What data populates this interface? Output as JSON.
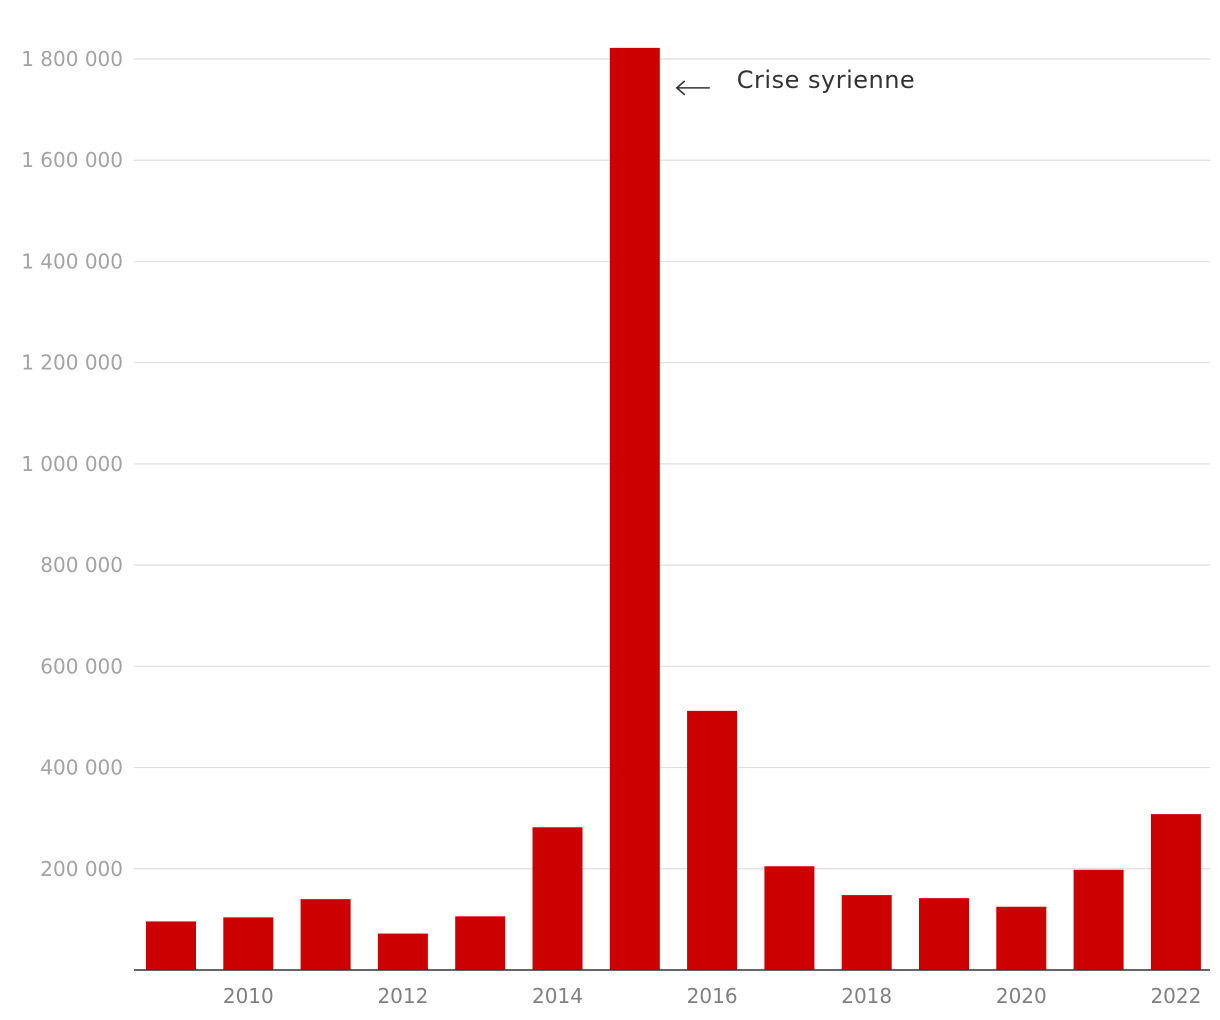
{
  "chart_data": {
    "type": "bar",
    "categories": [
      "2009",
      "2010",
      "2011",
      "2012",
      "2013",
      "2014",
      "2015",
      "2016",
      "2017",
      "2018",
      "2019",
      "2020",
      "2021",
      "2022"
    ],
    "values": [
      96000,
      104000,
      140000,
      72000,
      106000,
      282000,
      1822000,
      512000,
      205000,
      148000,
      142000,
      125000,
      198000,
      308000
    ],
    "x_tick_labels": [
      "2010",
      "2012",
      "2014",
      "2016",
      "2018",
      "2020",
      "2022"
    ],
    "y_ticks": [
      200000,
      400000,
      600000,
      800000,
      1000000,
      1200000,
      1400000,
      1600000,
      1800000
    ],
    "y_tick_labels": [
      "200 000",
      "400 000",
      "600 000",
      "800 000",
      "1 000 000",
      "1 200 000",
      "1 400 000",
      "1 600 000",
      "1 800 000"
    ],
    "ylim": [
      0,
      1800000
    ],
    "grid": true,
    "bar_color": "#cc0000",
    "title": "",
    "xlabel": "",
    "ylabel": "",
    "annotations": [
      {
        "category": "2015",
        "text": "Crise syrienne",
        "arrow": "left"
      }
    ]
  }
}
